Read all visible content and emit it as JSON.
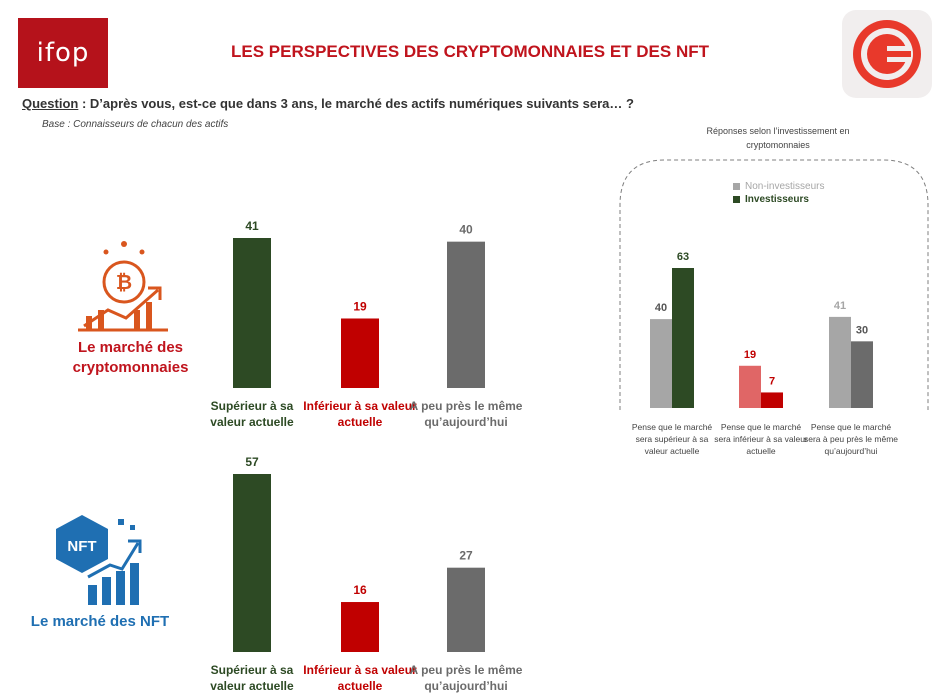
{
  "header": {
    "logo_left": "ifop",
    "title": "LES PERSPECTIVES DES CRYPTOMONNAIES ET DES NFT",
    "question_label": "Question",
    "question_text": " : D’après vous, est-ce que dans 3 ans, le marché des actifs numériques suivants sera… ?",
    "base": "Base : Connaisseurs de chacun des actifs"
  },
  "colors": {
    "green": "#2d4a24",
    "red": "#c00000",
    "gray": "#6b6b6b",
    "light_gray": "#a6a6a6",
    "light_red": "#e06666",
    "accent": "#c0141d",
    "nft_blue": "#1f6fb2"
  },
  "sections": {
    "crypto_label": "Le marché des cryptomonnaies",
    "nft_label": "Le marché des NFT"
  },
  "chart_data": [
    {
      "type": "bar",
      "categories": [
        "Supérieur à sa valeur actuelle",
        "Inférieur à sa valeur actuelle",
        "A peu près le même qu’aujourd’hui"
      ],
      "values": [
        41,
        19,
        40
      ],
      "colors": [
        "#2d4a24",
        "#c00000",
        "#6b6b6b"
      ],
      "ylim": [
        0,
        60
      ]
    },
    {
      "type": "bar",
      "categories": [
        "Supérieur à sa valeur actuelle",
        "Inférieur à sa valeur actuelle",
        "A peu près le même qu’aujourd’hui"
      ],
      "values": [
        57,
        16,
        27
      ],
      "colors": [
        "#2d4a24",
        "#c00000",
        "#6b6b6b"
      ],
      "ylim": [
        0,
        60
      ]
    },
    {
      "type": "bar",
      "title": "Réponses selon l’investissement en cryptomonnaies",
      "categories": [
        "Pense que le marché sera supérieur à sa valeur actuelle",
        "Pense que le marché sera inférieur à sa valeur actuelle",
        "Pense que le marché sera à peu près le même qu’aujourd’hui"
      ],
      "series": [
        {
          "name": "Non-investisseurs",
          "values": [
            40,
            19,
            41
          ]
        },
        {
          "name": "Investisseurs",
          "values": [
            63,
            7,
            30
          ]
        }
      ],
      "legend": "top-left",
      "ylim": [
        0,
        70
      ]
    }
  ]
}
